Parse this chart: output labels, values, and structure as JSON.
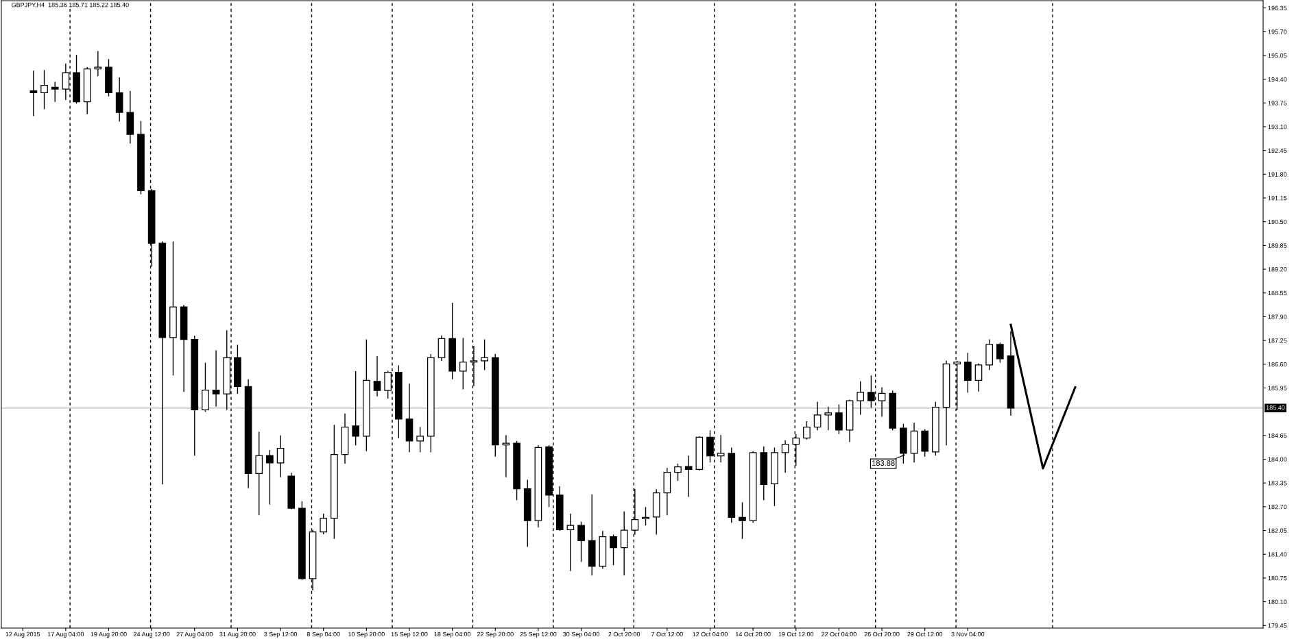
{
  "chart_data": {
    "type": "candlestick",
    "title": "GBPJPY,H4  185.36 185.71 185.22 185.40",
    "categories": [
      "12 Aug 2015",
      null,
      null,
      null,
      "17 Aug 04:00",
      null,
      null,
      null,
      "19 Aug 20:00",
      null,
      null,
      null,
      "24 Aug 12:00",
      null,
      null,
      null,
      "27 Aug 04:00",
      null,
      null,
      null,
      "31 Aug 20:00",
      null,
      null,
      null,
      "3 Sep 12:00",
      null,
      null,
      null,
      "8 Sep 04:00",
      null,
      null,
      null,
      "10 Sep 20:00",
      null,
      null,
      null,
      "15 Sep 12:00",
      null,
      null,
      null,
      "18 Sep 04:00",
      null,
      null,
      null,
      "22 Sep 20:00",
      null,
      null,
      null,
      "25 Sep 12:00",
      null,
      null,
      null,
      "30 Sep 04:00",
      null,
      null,
      null,
      "2 Oct 20:00",
      null,
      null,
      null,
      "7 Oct 12:00",
      null,
      null,
      null,
      "12 Oct 04:00",
      null,
      null,
      null,
      "14 Oct 20:00",
      null,
      null,
      null,
      "19 Oct 12:00",
      null,
      null,
      null,
      "22 Oct 04:00",
      null,
      null,
      null,
      "26 Oct 20:00",
      null,
      null,
      null,
      "29 Oct 12:00",
      null,
      null,
      null,
      "3 Nov 04:00",
      null,
      null,
      null,
      null,
      null,
      null,
      null,
      null,
      null,
      null,
      null,
      null,
      null,
      null,
      null,
      null,
      null,
      null,
      null,
      null,
      null,
      null,
      null,
      null,
      null,
      null,
      null
    ],
    "ohlc": [
      null,
      [
        194.08,
        194.63,
        193.39,
        194.03
      ],
      [
        194.03,
        194.65,
        193.58,
        194.23
      ],
      [
        194.18,
        194.33,
        193.78,
        194.13
      ],
      [
        194.13,
        194.83,
        193.83,
        194.58
      ],
      [
        194.58,
        195.07,
        193.73,
        193.78
      ],
      [
        193.78,
        194.73,
        193.44,
        194.68
      ],
      [
        194.68,
        195.17,
        194.48,
        194.73
      ],
      [
        194.73,
        194.95,
        193.93,
        194.03
      ],
      [
        194.03,
        194.45,
        193.24,
        193.49
      ],
      [
        193.49,
        194.08,
        192.64,
        192.89
      ],
      [
        192.89,
        193.26,
        191.25,
        191.35
      ],
      [
        191.35,
        191.4,
        189.27,
        189.91
      ],
      [
        189.91,
        189.96,
        183.31,
        187.33
      ],
      [
        187.33,
        189.96,
        186.29,
        188.17
      ],
      [
        188.17,
        188.22,
        185.84,
        187.28
      ],
      [
        187.28,
        187.38,
        184.1,
        185.35
      ],
      [
        185.35,
        186.64,
        185.3,
        185.89
      ],
      [
        185.89,
        186.98,
        185.44,
        185.79
      ],
      [
        185.79,
        187.53,
        185.35,
        186.78
      ],
      [
        186.78,
        187.13,
        185.79,
        185.99
      ],
      [
        185.99,
        186.19,
        183.21,
        183.61
      ],
      [
        183.61,
        184.75,
        182.47,
        184.1
      ],
      [
        184.1,
        184.25,
        182.76,
        183.9
      ],
      [
        183.9,
        184.65,
        183.51,
        184.3
      ],
      [
        183.54,
        183.63,
        182.63,
        182.66
      ],
      [
        182.66,
        182.85,
        180.7,
        180.73
      ],
      [
        180.73,
        182.07,
        180.41,
        182.01
      ],
      [
        182.01,
        182.51,
        181.95,
        182.38
      ],
      [
        182.38,
        184.94,
        181.82,
        184.13
      ],
      [
        184.13,
        185.25,
        183.88,
        184.88
      ],
      [
        184.91,
        186.41,
        184.38,
        184.63
      ],
      [
        184.63,
        187.28,
        184.22,
        186.16
      ],
      [
        186.13,
        186.82,
        185.72,
        185.88
      ],
      [
        185.88,
        186.42,
        185.66,
        186.38
      ],
      [
        186.38,
        186.57,
        184.57,
        185.1
      ],
      [
        185.1,
        186.07,
        184.19,
        184.5
      ],
      [
        184.5,
        184.88,
        184.19,
        184.63
      ],
      [
        184.63,
        186.88,
        184.19,
        186.78
      ],
      [
        186.78,
        187.39,
        186.69,
        187.3
      ],
      [
        187.3,
        188.28,
        186.19,
        186.41
      ],
      [
        186.41,
        187.32,
        185.91,
        186.66
      ],
      [
        186.66,
        187.1,
        186.0,
        186.69
      ],
      [
        186.69,
        187.28,
        186.44,
        186.78
      ],
      [
        186.78,
        186.88,
        184.07,
        184.39
      ],
      [
        184.39,
        184.66,
        183.51,
        184.44
      ],
      [
        184.44,
        184.5,
        182.88,
        183.19
      ],
      [
        183.19,
        183.44,
        181.6,
        182.32
      ],
      [
        182.32,
        184.38,
        182.13,
        184.32
      ],
      [
        184.34,
        184.38,
        182.69,
        183.02
      ],
      [
        183.02,
        183.26,
        182.04,
        182.07
      ],
      [
        182.07,
        182.51,
        180.94,
        182.19
      ],
      [
        182.19,
        182.29,
        181.19,
        181.77
      ],
      [
        181.77,
        183.04,
        180.82,
        181.07
      ],
      [
        181.07,
        182.04,
        181.0,
        181.88
      ],
      [
        181.88,
        181.94,
        181.1,
        181.58
      ],
      [
        181.58,
        182.57,
        180.82,
        182.06
      ],
      [
        182.06,
        183.19,
        181.94,
        182.35
      ],
      [
        182.37,
        182.69,
        182.19,
        182.41
      ],
      [
        182.42,
        183.18,
        181.94,
        183.08
      ],
      [
        183.08,
        183.76,
        182.47,
        183.64
      ],
      [
        183.64,
        183.88,
        183.41,
        183.79
      ],
      [
        183.8,
        184.1,
        182.97,
        183.72
      ],
      [
        183.72,
        184.63,
        183.69,
        184.6
      ],
      [
        184.6,
        184.79,
        183.91,
        184.09
      ],
      [
        184.09,
        184.66,
        183.91,
        184.16
      ],
      [
        184.16,
        184.32,
        182.26,
        182.41
      ],
      [
        182.41,
        182.82,
        181.82,
        182.32
      ],
      [
        182.32,
        184.22,
        182.26,
        184.18
      ],
      [
        184.18,
        184.35,
        182.88,
        183.31
      ],
      [
        183.33,
        184.32,
        182.72,
        184.18
      ],
      [
        184.18,
        184.52,
        183.63,
        184.41
      ],
      [
        184.41,
        184.69,
        183.82,
        184.58
      ],
      [
        184.58,
        185.04,
        184.54,
        184.88
      ],
      [
        184.88,
        185.57,
        184.79,
        185.21
      ],
      [
        185.21,
        185.44,
        184.79,
        185.27
      ],
      [
        185.27,
        185.5,
        184.69,
        184.8
      ],
      [
        184.8,
        185.63,
        184.47,
        185.6
      ],
      [
        185.6,
        186.13,
        185.22,
        185.83
      ],
      [
        185.83,
        186.29,
        185.41,
        185.6
      ],
      [
        185.6,
        185.97,
        185.16,
        185.8
      ],
      [
        185.8,
        185.88,
        184.79,
        184.85
      ],
      [
        184.85,
        184.97,
        183.88,
        184.16
      ],
      [
        184.16,
        185.0,
        183.91,
        184.77
      ],
      [
        184.77,
        184.82,
        184.07,
        184.22
      ],
      [
        184.2,
        185.57,
        184.1,
        185.42
      ],
      [
        185.42,
        186.7,
        184.38,
        186.61
      ],
      [
        186.61,
        186.69,
        185.35,
        186.66
      ],
      [
        186.66,
        186.91,
        185.82,
        186.16
      ],
      [
        186.16,
        186.62,
        185.85,
        186.58
      ],
      [
        186.58,
        187.28,
        186.44,
        187.14
      ],
      [
        187.14,
        187.19,
        186.64,
        186.75
      ],
      [
        186.83,
        187.5,
        185.19,
        185.4
      ],
      null,
      null,
      null,
      null,
      null,
      null,
      null,
      null,
      null,
      null,
      null,
      null,
      null,
      null,
      null,
      null,
      null,
      null,
      null,
      null,
      null,
      null,
      null
    ],
    "series": [
      {
        "type": "line",
        "color": "#000000",
        "values": [
          null,
          null,
          null,
          null,
          null,
          null,
          null,
          null,
          null,
          null,
          null,
          null,
          null,
          null,
          null,
          null,
          null,
          null,
          null,
          null,
          null,
          null,
          null,
          null,
          null,
          null,
          null,
          null,
          null,
          null,
          null,
          null,
          null,
          null,
          null,
          null,
          null,
          null,
          null,
          null,
          null,
          null,
          null,
          null,
          null,
          null,
          null,
          null,
          null,
          null,
          null,
          null,
          null,
          null,
          null,
          null,
          null,
          null,
          null,
          null,
          null,
          null,
          null,
          null,
          null,
          null,
          null,
          null,
          null,
          null,
          null,
          null,
          null,
          null,
          null,
          null,
          null,
          null,
          null,
          null,
          null,
          null,
          null,
          null,
          null,
          null,
          null,
          null,
          null,
          null,
          null,
          null,
          187.68,
          null,
          null,
          183.75,
          null,
          null,
          185.97,
          null,
          null,
          null,
          null,
          null,
          null,
          null,
          null,
          null,
          null,
          null,
          null,
          null,
          null,
          null,
          null,
          null
        ]
      }
    ],
    "ylim": [
      179.38,
      196.55
    ],
    "yticks": [
      {
        "value": 179.45,
        "label": "179.45"
      },
      {
        "value": 180.1,
        "label": "180.10"
      },
      {
        "value": 180.75,
        "label": "180.75"
      },
      {
        "value": 181.4,
        "label": "181.40"
      },
      {
        "value": 182.05,
        "label": "182.05"
      },
      {
        "value": 182.7,
        "label": "182.70"
      },
      {
        "value": 183.35,
        "label": "183.35"
      },
      {
        "value": 184.0,
        "label": "184.00"
      },
      {
        "value": 184.65,
        "label": "184.65"
      },
      {
        "value": 185.95,
        "label": "185.95"
      },
      {
        "value": 186.6,
        "label": "186.60"
      },
      {
        "value": 187.25,
        "label": "187.25"
      },
      {
        "value": 187.9,
        "label": "187.90"
      },
      {
        "value": 188.55,
        "label": "188.55"
      },
      {
        "value": 189.2,
        "label": "189.20"
      },
      {
        "value": 189.85,
        "label": "189.85"
      },
      {
        "value": 190.5,
        "label": "190.50"
      },
      {
        "value": 191.15,
        "label": "191.15"
      },
      {
        "value": 191.8,
        "label": "191.80"
      },
      {
        "value": 192.45,
        "label": "192.45"
      },
      {
        "value": 193.1,
        "label": "193.10"
      },
      {
        "value": 193.75,
        "label": "193.75"
      },
      {
        "value": 194.4,
        "label": "194.40"
      },
      {
        "value": 195.05,
        "label": "195.05"
      },
      {
        "value": 195.7,
        "label": "195.70"
      },
      {
        "value": 196.35,
        "label": "196.35"
      }
    ],
    "ref_lines": [
      {
        "axis": "y",
        "value": 185.4,
        "label": "185.40",
        "color": "#c0c0c0",
        "line_style": "solid"
      }
    ],
    "annotations": [
      "183.88"
    ]
  }
}
